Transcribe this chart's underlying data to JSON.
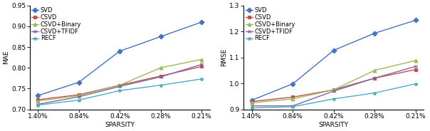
{
  "x_labels": [
    "1.40%",
    "0.84%",
    "0.42%",
    "0.28%",
    "0.21%"
  ],
  "x_positions": [
    0,
    1,
    2,
    3,
    4
  ],
  "mae": {
    "SVD": [
      0.733,
      0.765,
      0.84,
      0.875,
      0.91
    ],
    "CSVD": [
      0.723,
      0.735,
      0.758,
      0.78,
      0.803
    ],
    "CSVD+Binary": [
      0.72,
      0.733,
      0.758,
      0.8,
      0.82
    ],
    "CSVD+TFIDF": [
      0.712,
      0.73,
      0.755,
      0.778,
      0.808
    ],
    "RECF": [
      0.71,
      0.722,
      0.745,
      0.758,
      0.773
    ]
  },
  "rmse": {
    "SVD": [
      0.935,
      0.998,
      1.127,
      1.193,
      1.243
    ],
    "CSVD": [
      0.93,
      0.947,
      0.975,
      1.02,
      1.053
    ],
    "CSVD+Binary": [
      0.925,
      0.94,
      0.975,
      1.05,
      1.088
    ],
    "CSVD+TFIDF": [
      0.913,
      0.913,
      0.97,
      1.02,
      1.065
    ],
    "RECF": [
      0.905,
      0.91,
      0.94,
      0.963,
      0.998
    ]
  },
  "series": [
    "SVD",
    "CSVD",
    "CSVD+Binary",
    "CSVD+TFIDF",
    "RECF"
  ],
  "colors": {
    "SVD": "#4472c4",
    "CSVD": "#c0504d",
    "CSVD+Binary": "#9bbb59",
    "CSVD+TFIDF": "#8064a2",
    "RECF": "#4bacc6"
  },
  "markers": {
    "SVD": "D",
    "CSVD": "s",
    "CSVD+Binary": "^",
    "CSVD+TFIDF": "x",
    "RECF": "*"
  },
  "mae_ylim": [
    0.7,
    0.95
  ],
  "mae_yticks": [
    0.7,
    0.75,
    0.8,
    0.85,
    0.9,
    0.95
  ],
  "rmse_ylim": [
    0.9,
    1.3
  ],
  "rmse_yticks": [
    0.9,
    1.0,
    1.1,
    1.2,
    1.3
  ],
  "xlabel": "SPARSITY",
  "mae_ylabel": "MAE",
  "rmse_ylabel": "RMSE",
  "font_size": 6.5,
  "marker_size": 3.5,
  "line_width": 1.0
}
